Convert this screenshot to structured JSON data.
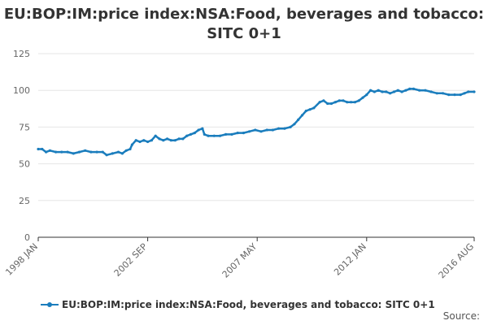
{
  "title_line1": "EU:BOP:IM:price index:NSA:Food, beverages and tobacco:",
  "title_line2": "SITC 0+1",
  "source_label": "Source:",
  "colors": {
    "series": "#1a7dbd",
    "grid": "#e6e6e6",
    "axis": "#333333",
    "text": "#666666"
  },
  "chart_data": {
    "type": "line",
    "title": "EU:BOP:IM:price index:NSA:Food, beverages and tobacco: SITC 0+1",
    "xlabel": "",
    "ylabel": "",
    "x_range": [
      "1998-01",
      "2016-08"
    ],
    "ylim": [
      0,
      125
    ],
    "yticks": [
      0,
      25,
      50,
      75,
      100,
      125
    ],
    "xtick_labels": [
      {
        "date": "1998-01",
        "label": "1998 JAN"
      },
      {
        "date": "2002-09",
        "label": "2002 SEP"
      },
      {
        "date": "2007-05",
        "label": "2007 MAY"
      },
      {
        "date": "2012-01",
        "label": "2012 JAN"
      },
      {
        "date": "2016-08",
        "label": "2016 AUG"
      }
    ],
    "grid": true,
    "legend": "bottom",
    "series": [
      {
        "name": "EU:BOP:IM:price index:NSA:Food, beverages and tobacco: SITC 0+1",
        "points": [
          [
            "1998-01",
            60
          ],
          [
            "1998-03",
            60
          ],
          [
            "1998-05",
            58
          ],
          [
            "1998-07",
            59
          ],
          [
            "1998-10",
            58
          ],
          [
            "1999-01",
            58
          ],
          [
            "1999-04",
            58
          ],
          [
            "1999-07",
            57
          ],
          [
            "1999-10",
            58
          ],
          [
            "2000-01",
            59
          ],
          [
            "2000-04",
            58
          ],
          [
            "2000-07",
            58
          ],
          [
            "2000-10",
            58
          ],
          [
            "2000-12",
            56
          ],
          [
            "2001-03",
            57
          ],
          [
            "2001-06",
            58
          ],
          [
            "2001-08",
            57
          ],
          [
            "2001-10",
            59
          ],
          [
            "2001-12",
            60
          ],
          [
            "2002-01",
            63
          ],
          [
            "2002-03",
            66
          ],
          [
            "2002-05",
            65
          ],
          [
            "2002-07",
            66
          ],
          [
            "2002-09",
            65
          ],
          [
            "2002-11",
            66
          ],
          [
            "2003-01",
            69
          ],
          [
            "2003-03",
            67
          ],
          [
            "2003-05",
            66
          ],
          [
            "2003-07",
            67
          ],
          [
            "2003-09",
            66
          ],
          [
            "2003-11",
            66
          ],
          [
            "2004-01",
            67
          ],
          [
            "2004-03",
            67
          ],
          [
            "2004-05",
            69
          ],
          [
            "2004-07",
            70
          ],
          [
            "2004-09",
            71
          ],
          [
            "2004-11",
            73
          ],
          [
            "2005-01",
            74
          ],
          [
            "2005-02",
            70
          ],
          [
            "2005-04",
            69
          ],
          [
            "2005-07",
            69
          ],
          [
            "2005-10",
            69
          ],
          [
            "2006-01",
            70
          ],
          [
            "2006-04",
            70
          ],
          [
            "2006-07",
            71
          ],
          [
            "2006-10",
            71
          ],
          [
            "2007-01",
            72
          ],
          [
            "2007-04",
            73
          ],
          [
            "2007-07",
            72
          ],
          [
            "2007-10",
            73
          ],
          [
            "2008-01",
            73
          ],
          [
            "2008-04",
            74
          ],
          [
            "2008-07",
            74
          ],
          [
            "2008-10",
            75
          ],
          [
            "2008-12",
            77
          ],
          [
            "2009-02",
            80
          ],
          [
            "2009-04",
            83
          ],
          [
            "2009-06",
            86
          ],
          [
            "2009-08",
            87
          ],
          [
            "2009-10",
            88
          ],
          [
            "2010-01",
            92
          ],
          [
            "2010-03",
            93
          ],
          [
            "2010-05",
            91
          ],
          [
            "2010-07",
            91
          ],
          [
            "2010-09",
            92
          ],
          [
            "2010-11",
            93
          ],
          [
            "2011-01",
            93
          ],
          [
            "2011-03",
            92
          ],
          [
            "2011-05",
            92
          ],
          [
            "2011-07",
            92
          ],
          [
            "2011-09",
            93
          ],
          [
            "2011-11",
            95
          ],
          [
            "2012-01",
            97
          ],
          [
            "2012-03",
            100
          ],
          [
            "2012-05",
            99
          ],
          [
            "2012-07",
            100
          ],
          [
            "2012-09",
            99
          ],
          [
            "2012-11",
            99
          ],
          [
            "2013-01",
            98
          ],
          [
            "2013-03",
            99
          ],
          [
            "2013-05",
            100
          ],
          [
            "2013-07",
            99
          ],
          [
            "2013-09",
            100
          ],
          [
            "2013-11",
            101
          ],
          [
            "2014-01",
            101
          ],
          [
            "2014-04",
            100
          ],
          [
            "2014-07",
            100
          ],
          [
            "2014-10",
            99
          ],
          [
            "2015-01",
            98
          ],
          [
            "2015-04",
            98
          ],
          [
            "2015-07",
            97
          ],
          [
            "2015-10",
            97
          ],
          [
            "2016-01",
            97
          ],
          [
            "2016-03",
            98
          ],
          [
            "2016-05",
            99
          ],
          [
            "2016-08",
            99
          ]
        ]
      }
    ]
  }
}
